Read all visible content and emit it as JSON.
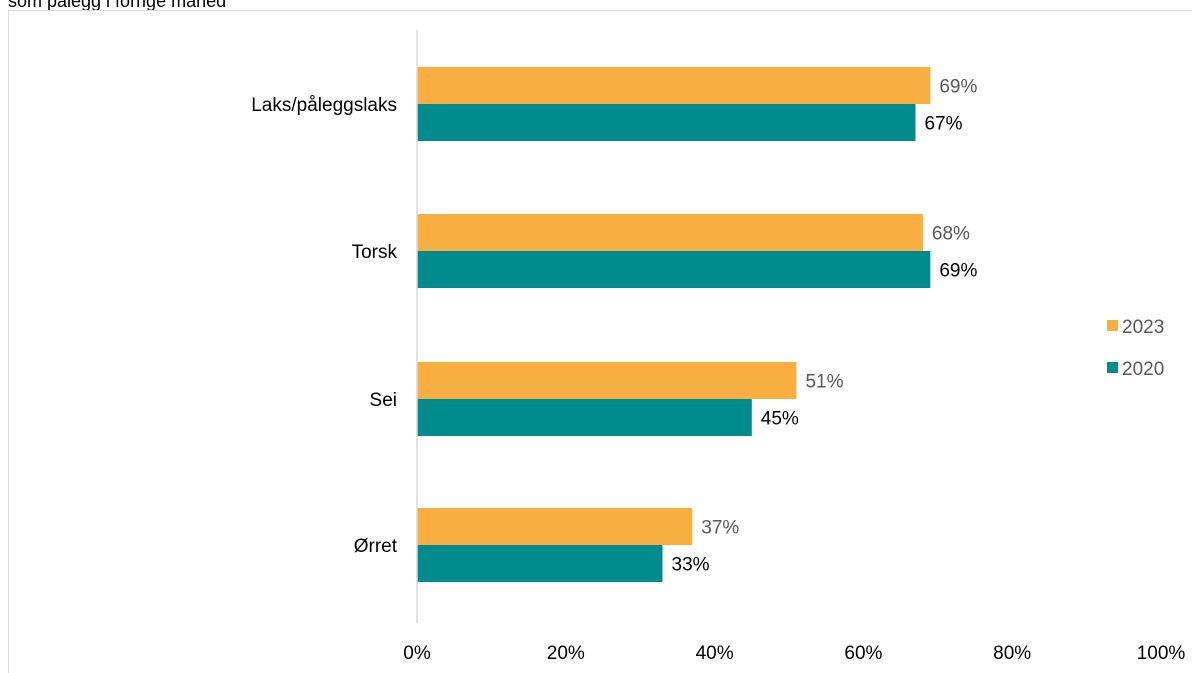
{
  "chart_data": {
    "type": "bar",
    "orientation": "horizontal",
    "title": "som pålegg i forrige måned",
    "categories": [
      "Laks/påleggslaks",
      "Torsk",
      "Sei",
      "Ørret"
    ],
    "series": [
      {
        "name": "2023",
        "values": [
          69,
          68,
          51,
          37
        ],
        "color": "#F9AE41",
        "label_color": "#595959"
      },
      {
        "name": "2020",
        "values": [
          67,
          69,
          45,
          33
        ],
        "color": "#008C8F",
        "label_color": "#000000"
      }
    ],
    "xlim": [
      0,
      100
    ],
    "x_ticks": [
      "0%",
      "20%",
      "40%",
      "60%",
      "80%",
      "100%"
    ],
    "x_tick_values": [
      0,
      20,
      40,
      60,
      80,
      100
    ],
    "value_suffix": "%",
    "legend_position": "right",
    "grid": false
  }
}
